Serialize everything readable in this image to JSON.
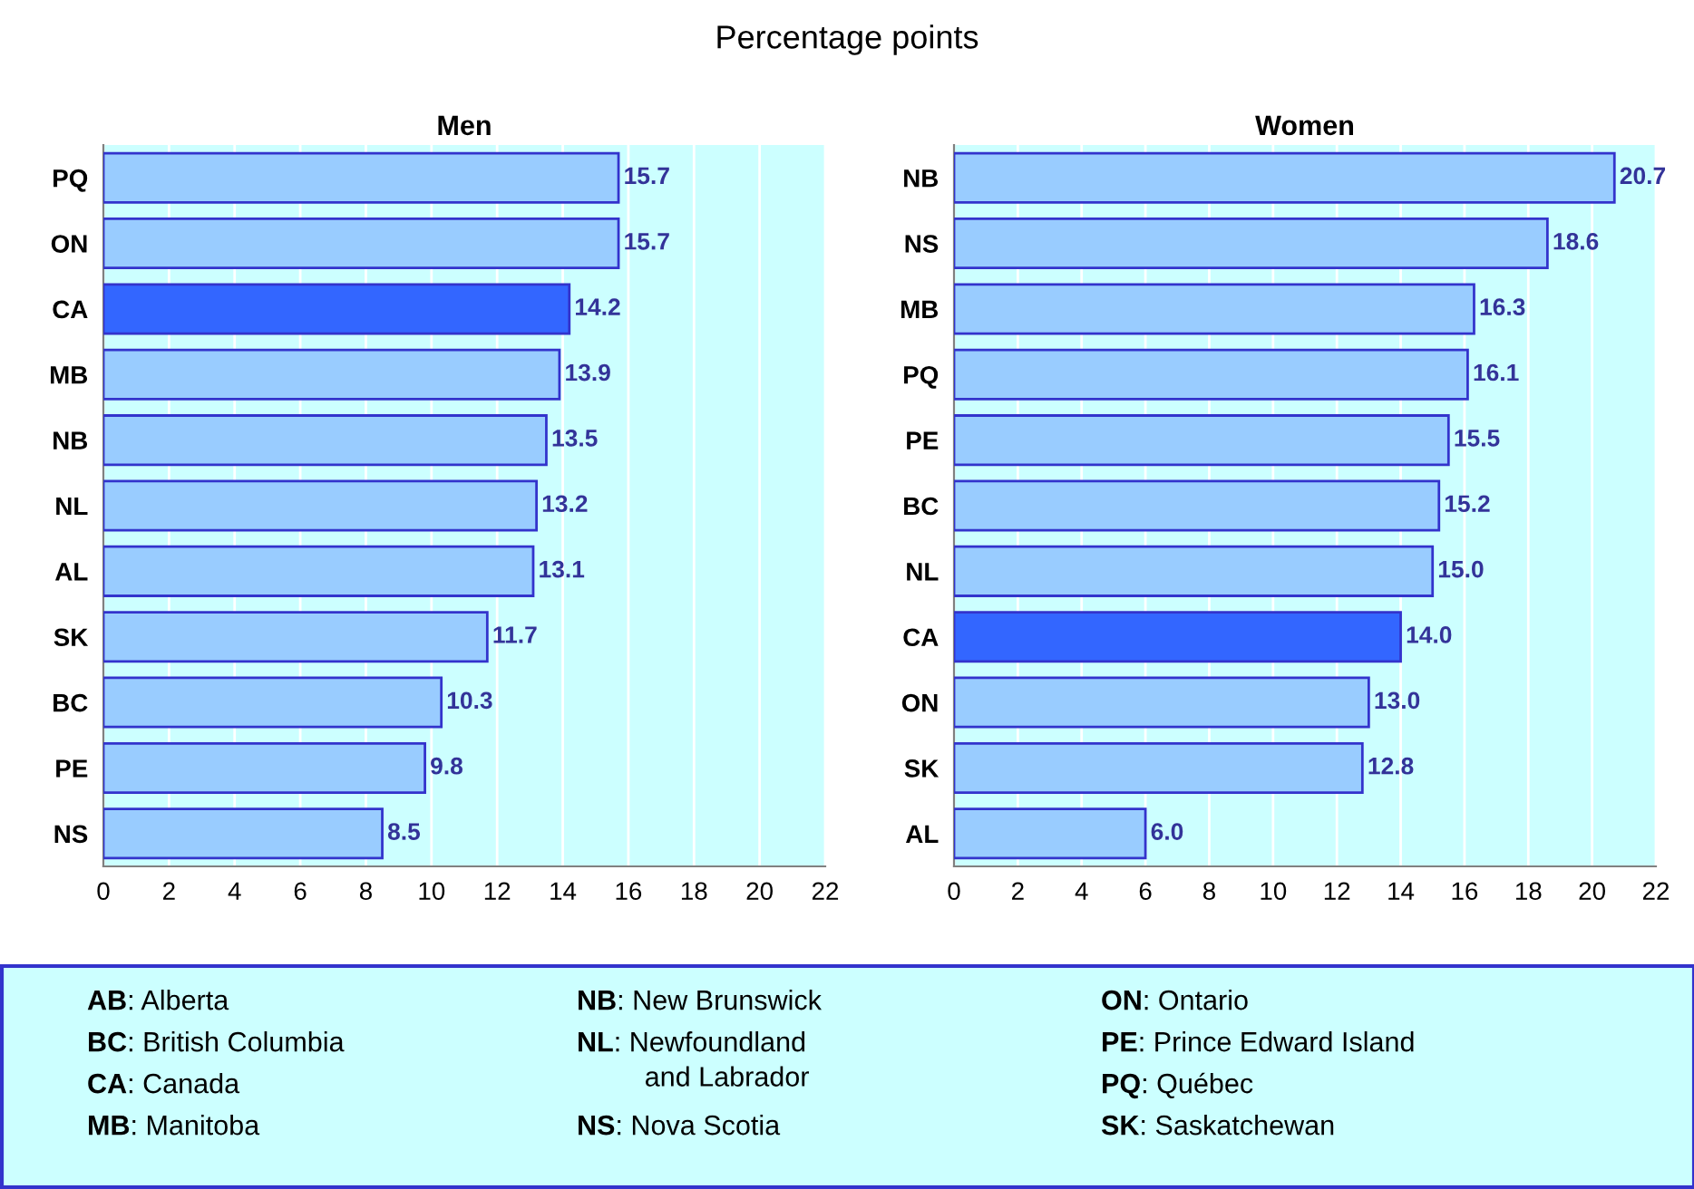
{
  "chart_data": [
    {
      "type": "bar",
      "orientation": "horizontal",
      "title": "Percentage points",
      "subtitle": "Men",
      "categories": [
        "PQ",
        "ON",
        "CA",
        "MB",
        "NB",
        "NL",
        "AL",
        "SK",
        "BC",
        "PE",
        "NS"
      ],
      "values": [
        15.7,
        15.7,
        14.2,
        13.9,
        13.5,
        13.2,
        13.1,
        11.7,
        10.3,
        9.8,
        8.5
      ],
      "colors": [
        "#99ccff",
        "#99ccff",
        "#3366ff",
        "#99ccff",
        "#99ccff",
        "#99ccff",
        "#99ccff",
        "#99ccff",
        "#99ccff",
        "#99ccff",
        "#99ccff"
      ],
      "xlim": [
        0,
        22
      ],
      "xticks": [
        0,
        2,
        4,
        6,
        8,
        10,
        12,
        14,
        16,
        18,
        20,
        22
      ],
      "grid": "x",
      "data_labels": true,
      "bands": [
        {
          "axis": "x",
          "from": 0,
          "to": 22,
          "color": "#ccffff"
        }
      ]
    },
    {
      "type": "bar",
      "orientation": "horizontal",
      "title": "Women",
      "categories": [
        "NB",
        "NS",
        "MB",
        "PQ",
        "PE",
        "BC",
        "NL",
        "CA",
        "ON",
        "SK",
        "AL"
      ],
      "values": [
        20.7,
        18.6,
        16.3,
        16.1,
        15.5,
        15.2,
        15.0,
        14.0,
        13.0,
        12.8,
        6.0
      ],
      "colors": [
        "#99ccff",
        "#99ccff",
        "#99ccff",
        "#99ccff",
        "#99ccff",
        "#99ccff",
        "#99ccff",
        "#3366ff",
        "#99ccff",
        "#99ccff",
        "#99ccff"
      ],
      "value_labels": [
        "20.7",
        "18.6",
        "16.3",
        "16.1",
        "15.5",
        "15.2",
        "15.0",
        "14.0",
        "13.0",
        "12.8",
        "6.0"
      ],
      "xlim": [
        0,
        22
      ],
      "xticks": [
        0,
        2,
        4,
        6,
        8,
        10,
        12,
        14,
        16,
        18,
        20,
        22
      ],
      "grid": "x",
      "bands": [
        {
          "axis": "x",
          "from": 0,
          "to": 22,
          "color": "#ccffff"
        }
      ]
    },
    {
      "type": "other",
      "annotations": [
        "AB: Alberta",
        "BC: British Columbia",
        "CA: Canada",
        "MB: Manitoba",
        "NB: New Brunswick",
        "NL: Newfoundland\n    and Labrador",
        "NS: Nova Scotia",
        "ON: Ontario",
        "PE: Prince Edward Island",
        "PQ: Québec",
        "SK: Saskatchewan"
      ]
    }
  ]
}
